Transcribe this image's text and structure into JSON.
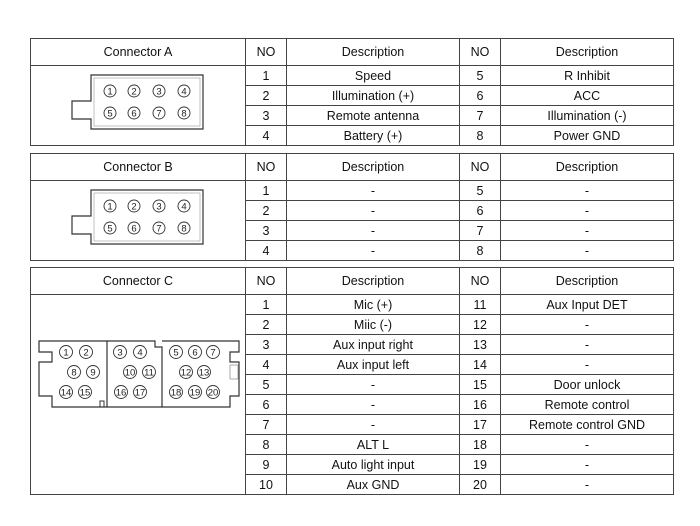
{
  "headers": {
    "no": "NO",
    "description": "Description"
  },
  "connectors": [
    {
      "name": "Connector A",
      "rows": [
        [
          "1",
          "Speed",
          "5",
          "R Inhibit"
        ],
        [
          "2",
          "Illumination (+)",
          "6",
          "ACC"
        ],
        [
          "3",
          "Remote antenna",
          "7",
          "Illumination (-)"
        ],
        [
          "4",
          "Battery (+)",
          "8",
          "Power GND"
        ]
      ]
    },
    {
      "name": "Connector B",
      "rows": [
        [
          "1",
          "-",
          "5",
          "-"
        ],
        [
          "2",
          "-",
          "6",
          "-"
        ],
        [
          "3",
          "-",
          "7",
          "-"
        ],
        [
          "4",
          "-",
          "8",
          "-"
        ]
      ]
    },
    {
      "name": "Connector C",
      "rows": [
        [
          "1",
          "Mic (+)",
          "11",
          "Aux Input DET"
        ],
        [
          "2",
          "Miic (-)",
          "12",
          "-"
        ],
        [
          "3",
          "Aux input right",
          "13",
          "-"
        ],
        [
          "4",
          "Aux input left",
          "14",
          "-"
        ],
        [
          "5",
          "-",
          "15",
          "Door unlock"
        ],
        [
          "6",
          "-",
          "16",
          "Remote control"
        ],
        [
          "7",
          "-",
          "17",
          "Remote control GND"
        ],
        [
          "8",
          "ALT L",
          "18",
          "-"
        ],
        [
          "9",
          "Auto light input",
          "19",
          "-"
        ],
        [
          "10",
          "Aux GND",
          "20",
          "-"
        ]
      ]
    }
  ],
  "pins_8": [
    "1",
    "2",
    "3",
    "4",
    "5",
    "6",
    "7",
    "8"
  ],
  "pins_20": [
    "1",
    "2",
    "3",
    "4",
    "5",
    "6",
    "7",
    "8",
    "9",
    "10",
    "11",
    "12",
    "13",
    "14",
    "15",
    "16",
    "17",
    "18",
    "19",
    "20"
  ]
}
